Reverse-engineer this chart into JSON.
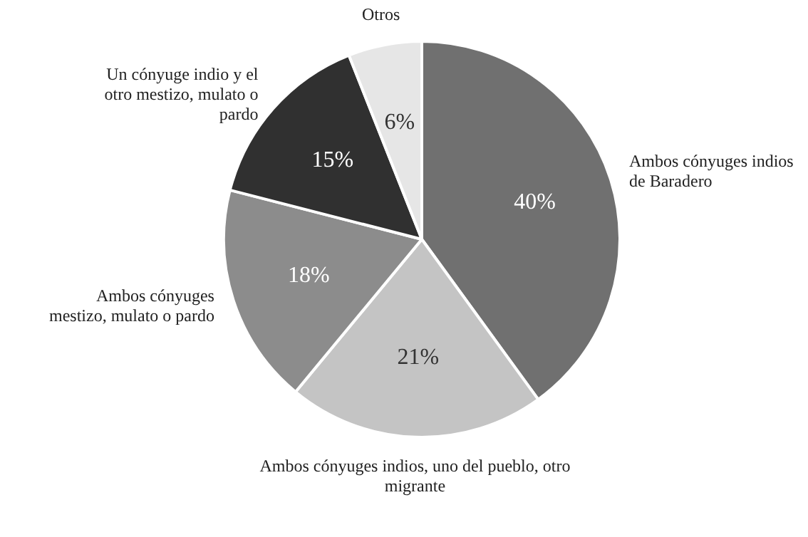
{
  "chart_data": {
    "type": "pie",
    "categories": [
      "Ambos cónyuges indios de Baradero",
      "Ambos cónyuges indios, uno del pueblo, otro migrante",
      "Ambos cónyuges mestizo, mulato o pardo",
      "Un cónyuge indio y el otro mestizo, mulato o pardo",
      "Otros"
    ],
    "values": [
      40,
      21,
      18,
      15,
      6
    ],
    "colors": [
      "#707070",
      "#c4c4c4",
      "#8c8c8c",
      "#303030",
      "#e6e6e6"
    ],
    "value_labels": [
      "40%",
      "21%",
      "18%",
      "15%",
      "6%"
    ],
    "legend": false
  }
}
